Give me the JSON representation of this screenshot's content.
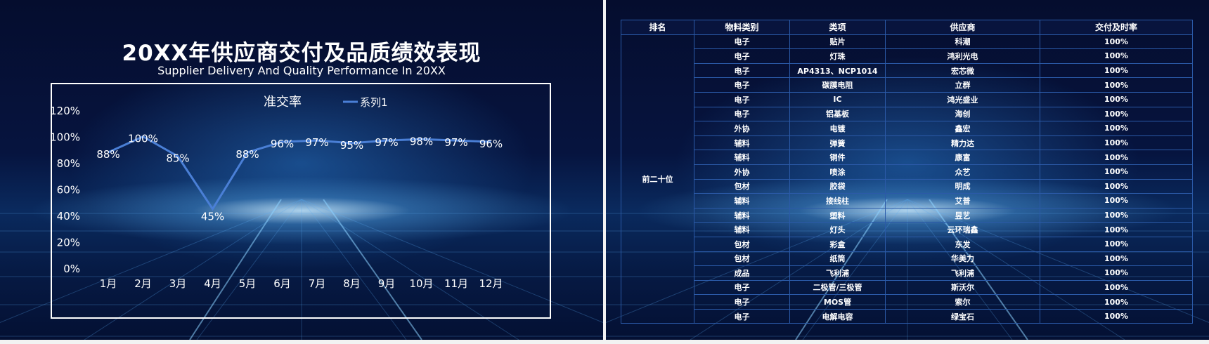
{
  "left_slide": {
    "title": "20XX年供应商交付及品质绩效表现",
    "subtitle": "Supplier Delivery And Quality Performance In 20XX"
  },
  "chart_data": {
    "type": "line",
    "title": "准交率",
    "categories": [
      "1月",
      "2月",
      "3月",
      "4月",
      "5月",
      "6月",
      "7月",
      "8月",
      "9月",
      "10月",
      "11月",
      "12月"
    ],
    "series": [
      {
        "name": "系列1",
        "values": [
          88,
          100,
          85,
          45,
          88,
          96,
          97,
          95,
          97,
          98,
          97,
          96
        ]
      }
    ],
    "data_labels": [
      "88%",
      "100%",
      "85%",
      "45%",
      "88%",
      "96%",
      "97%",
      "95%",
      "97%",
      "98%",
      "97%",
      "96%"
    ],
    "y_ticks": [
      "0%",
      "20%",
      "40%",
      "60%",
      "80%",
      "100%",
      "120%"
    ],
    "ylim": [
      0,
      120
    ],
    "legend": "top",
    "grid": false,
    "xlabel": "",
    "ylabel": "",
    "line_color": "#4a7fd6"
  },
  "table": {
    "headers": [
      "排名",
      "物料类别",
      "类项",
      "供应商",
      "交付及时率"
    ],
    "rank_label": "前二十位",
    "rows": [
      [
        "电子",
        "贴片",
        "科潮",
        "100%"
      ],
      [
        "电子",
        "灯珠",
        "鸿利光电",
        "100%"
      ],
      [
        "电子",
        "AP4313、NCP1014",
        "宏芯微",
        "100%"
      ],
      [
        "电子",
        "碳膜电阻",
        "立群",
        "100%"
      ],
      [
        "电子",
        "IC",
        "鸿光盛业",
        "100%"
      ],
      [
        "电子",
        "铝基板",
        "海创",
        "100%"
      ],
      [
        "外协",
        "电镀",
        "鑫宏",
        "100%"
      ],
      [
        "辅料",
        "弹簧",
        "精力达",
        "100%"
      ],
      [
        "辅料",
        "铜件",
        "康富",
        "100%"
      ],
      [
        "外协",
        "喷涂",
        "众艺",
        "100%"
      ],
      [
        "包材",
        "胶袋",
        "明成",
        "100%"
      ],
      [
        "辅料",
        "接线柱",
        "艾普",
        "100%"
      ],
      [
        "辅料",
        "塑料",
        "昱艺",
        "100%"
      ],
      [
        "辅料",
        "灯头",
        "云环瑞鑫",
        "100%"
      ],
      [
        "包材",
        "彩盒",
        "东发",
        "100%"
      ],
      [
        "包材",
        "纸筒",
        "华美力",
        "100%"
      ],
      [
        "成品",
        "飞利浦",
        "飞利浦",
        "100%"
      ],
      [
        "电子",
        "二极管/三极管",
        "斯沃尔",
        "100%"
      ],
      [
        "电子",
        "MOS管",
        "索尔",
        "100%"
      ],
      [
        "电子",
        "电解电容",
        "绿宝石",
        "100%"
      ]
    ]
  }
}
